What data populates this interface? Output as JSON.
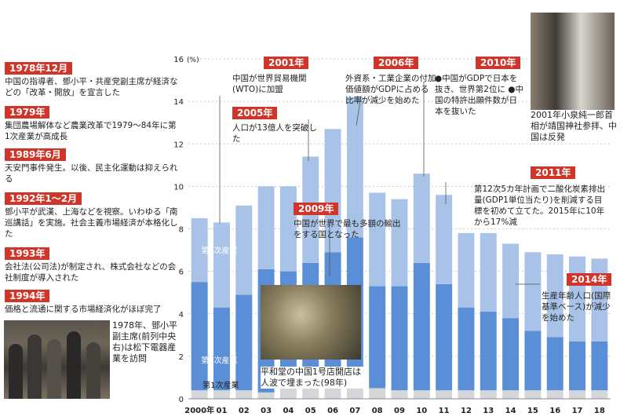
{
  "timeline": [
    {
      "year": "1978年12月",
      "text": "中国の指導者、鄧小平・共産党副主席が経済などの「改革・開放」を宣言した"
    },
    {
      "year": "1979年",
      "text": "集団農場解体など農業改革で1979～84年に第1次産業が高成長"
    },
    {
      "year": "1989年6月",
      "text": "天安門事件発生。以後、民主化運動は抑えられる"
    },
    {
      "year": "1992年1～2月",
      "text": "鄧小平が武漢、上海などを視察。いわゆる「南巡講話」を実施。社会主義市場経済が本格化した"
    },
    {
      "year": "1993年",
      "text": "会社法(公司法)が制定され、株式会社などの会社制度が導入された"
    },
    {
      "year": "1994年",
      "text": "価格と流通に関する市場経済化がほぼ完了"
    }
  ],
  "photo_captions": {
    "deng": "1978年、鄧小平副主席(前列中央右)は松下電器産業を訪問",
    "koizumi": "2001年小泉純一郎首相が靖国神社参拝、中国は反発",
    "crowd": "平和堂の中国1号店開店は人波で埋まった(98年)"
  },
  "annotations": [
    {
      "year": "2001年",
      "text": "中国が世界貿易機関(WTO)に加盟"
    },
    {
      "year": "2005年",
      "text": "人口が13億人を突破した"
    },
    {
      "year": "2006年",
      "text": "外資系・工業企業の付加価値額がGDPに占める比率が減少を始めた"
    },
    {
      "year": "2009年",
      "text": "中国が世界で最も多額の輸出をする国となった"
    },
    {
      "year": "2010年",
      "text": "●中国がGDPで日本を抜き、世界第2位に ●中国の特許出願件数が日本を抜いた"
    },
    {
      "year": "2011年",
      "text": "第12次5カ年計画で二酸化炭素排出量(GDP1単位当たり)を削減する目標を初めて立てた。2015年に10年から17%減"
    },
    {
      "year": "2014年",
      "text": "生産年齢人口(国際基準ベース)が減少を始めた"
    }
  ],
  "chart_data": {
    "type": "bar",
    "stacked": true,
    "ylabel_unit": "(%)",
    "ylim": [
      0,
      16
    ],
    "yticks": [
      0,
      2,
      4,
      6,
      8,
      10,
      12,
      14,
      16
    ],
    "categories": [
      "2000年",
      "01",
      "02",
      "03",
      "04",
      "05",
      "06",
      "07",
      "08",
      "09",
      "10",
      "11",
      "12",
      "13",
      "14",
      "15",
      "16",
      "17",
      "18"
    ],
    "series": [
      {
        "name": "第1次産業",
        "color": "#d4d6da",
        "values": [
          0.4,
          0.4,
          0.4,
          0.3,
          0.6,
          0.6,
          0.6,
          0.7,
          0.5,
          0.4,
          0.4,
          0.4,
          0.4,
          0.4,
          0.4,
          0.4,
          0.4,
          0.4,
          0.4
        ]
      },
      {
        "name": "第2次産業",
        "color": "#5a8ed6",
        "values": [
          5.1,
          3.9,
          4.5,
          5.8,
          5.4,
          5.8,
          6.3,
          6.9,
          4.8,
          4.9,
          6.0,
          5.0,
          3.9,
          3.7,
          3.4,
          2.8,
          2.5,
          2.3,
          2.3
        ]
      },
      {
        "name": "第3次産業",
        "color": "#a9c3e8",
        "values": [
          3.0,
          4.0,
          4.2,
          3.9,
          4.0,
          5.0,
          5.8,
          6.6,
          4.4,
          4.1,
          4.2,
          4.2,
          3.5,
          3.7,
          3.5,
          3.7,
          3.9,
          4.0,
          3.9
        ]
      }
    ],
    "legend_labels": [
      "第3次産業",
      "第2次産業",
      "第1次産業"
    ]
  }
}
